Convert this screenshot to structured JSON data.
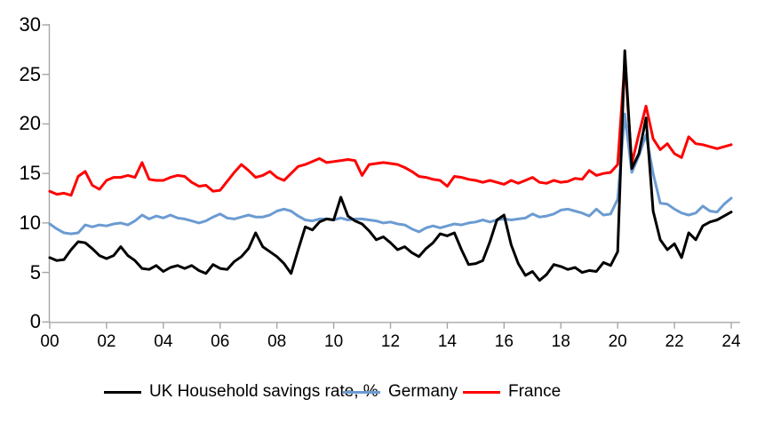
{
  "chart_data": {
    "type": "line",
    "title": "",
    "frequency": "quarterly",
    "x_range": [
      "2000 Q1",
      "2024 Q1"
    ],
    "ylim": [
      0,
      30
    ],
    "y_ticks": [
      0,
      5,
      10,
      15,
      20,
      25,
      30
    ],
    "x_tick_labels": [
      "00",
      "02",
      "04",
      "06",
      "08",
      "10",
      "12",
      "14",
      "16",
      "18",
      "20",
      "22",
      "24"
    ],
    "grid": false,
    "legend_position": "bottom",
    "series": [
      {
        "name": "UK Household savings rate, %",
        "color": "#000000",
        "values": [
          6.5,
          6.2,
          6.3,
          7.3,
          8.1,
          8.0,
          7.4,
          6.7,
          6.4,
          6.7,
          7.6,
          6.7,
          6.2,
          5.4,
          5.3,
          5.7,
          5.1,
          5.5,
          5.7,
          5.4,
          5.7,
          5.2,
          4.9,
          5.8,
          5.4,
          5.3,
          6.1,
          6.6,
          7.4,
          9.0,
          7.6,
          7.1,
          6.6,
          5.9,
          4.9,
          7.3,
          9.6,
          9.3,
          10.1,
          10.4,
          10.3,
          12.6,
          10.7,
          10.2,
          9.9,
          9.2,
          8.3,
          8.6,
          8.0,
          7.3,
          7.6,
          7.0,
          6.6,
          7.4,
          8.0,
          8.9,
          8.7,
          9.0,
          7.3,
          5.8,
          5.9,
          6.2,
          8.1,
          10.3,
          10.8,
          7.8,
          5.9,
          4.7,
          5.1,
          4.2,
          4.8,
          5.8,
          5.6,
          5.3,
          5.5,
          5.0,
          5.2,
          5.1,
          6.0,
          5.7,
          7.1,
          27.4,
          15.5,
          17.0,
          20.6,
          11.2,
          8.3,
          7.3,
          7.9,
          6.5,
          9.0,
          8.3,
          9.7,
          10.1,
          10.3,
          10.7,
          11.1
        ]
      },
      {
        "name": "Germany",
        "color": "#6B9BD2",
        "values": [
          9.9,
          9.4,
          9.0,
          8.9,
          9.0,
          9.8,
          9.6,
          9.8,
          9.7,
          9.9,
          10.0,
          9.8,
          10.2,
          10.8,
          10.4,
          10.7,
          10.5,
          10.8,
          10.5,
          10.4,
          10.2,
          10.0,
          10.2,
          10.6,
          10.9,
          10.5,
          10.4,
          10.6,
          10.8,
          10.6,
          10.6,
          10.8,
          11.2,
          11.4,
          11.2,
          10.7,
          10.3,
          10.2,
          10.4,
          10.4,
          10.3,
          10.5,
          10.3,
          10.4,
          10.4,
          10.3,
          10.2,
          10.0,
          10.1,
          9.9,
          9.8,
          9.4,
          9.1,
          9.5,
          9.7,
          9.5,
          9.7,
          9.9,
          9.8,
          10.0,
          10.1,
          10.3,
          10.1,
          10.3,
          10.4,
          10.3,
          10.4,
          10.5,
          10.9,
          10.6,
          10.7,
          10.9,
          11.3,
          11.4,
          11.2,
          11.0,
          10.7,
          11.4,
          10.8,
          10.9,
          12.4,
          21.0,
          15.1,
          16.8,
          18.9,
          15.0,
          12.0,
          11.9,
          11.4,
          11.0,
          10.8,
          11.0,
          11.7,
          11.2,
          11.1,
          11.9,
          12.5
        ]
      },
      {
        "name": "France",
        "color": "#FF0000",
        "values": [
          13.2,
          12.9,
          13.0,
          12.8,
          14.7,
          15.2,
          13.8,
          13.4,
          14.3,
          14.6,
          14.6,
          14.8,
          14.6,
          16.1,
          14.4,
          14.3,
          14.3,
          14.6,
          14.8,
          14.7,
          14.1,
          13.7,
          13.8,
          13.2,
          13.3,
          14.2,
          15.1,
          15.9,
          15.3,
          14.6,
          14.8,
          15.2,
          14.6,
          14.3,
          15.0,
          15.7,
          15.9,
          16.2,
          16.5,
          16.1,
          16.2,
          16.3,
          16.4,
          16.3,
          14.8,
          15.9,
          16.0,
          16.1,
          16.0,
          15.9,
          15.6,
          15.2,
          14.7,
          14.6,
          14.4,
          14.3,
          13.7,
          14.7,
          14.6,
          14.4,
          14.3,
          14.1,
          14.3,
          14.1,
          13.9,
          14.3,
          14.0,
          14.3,
          14.6,
          14.1,
          14.0,
          14.3,
          14.1,
          14.2,
          14.5,
          14.4,
          15.3,
          14.8,
          15.0,
          15.1,
          15.9,
          26.3,
          16.0,
          19.0,
          21.8,
          18.5,
          17.4,
          18.0,
          17.0,
          16.6,
          18.7,
          18.0,
          17.9,
          17.7,
          17.5,
          17.7,
          17.9
        ]
      }
    ]
  },
  "styles": {
    "axis_color": "#A6A6A6",
    "background": "#FFFFFF",
    "tick_label_color": "#000000"
  }
}
